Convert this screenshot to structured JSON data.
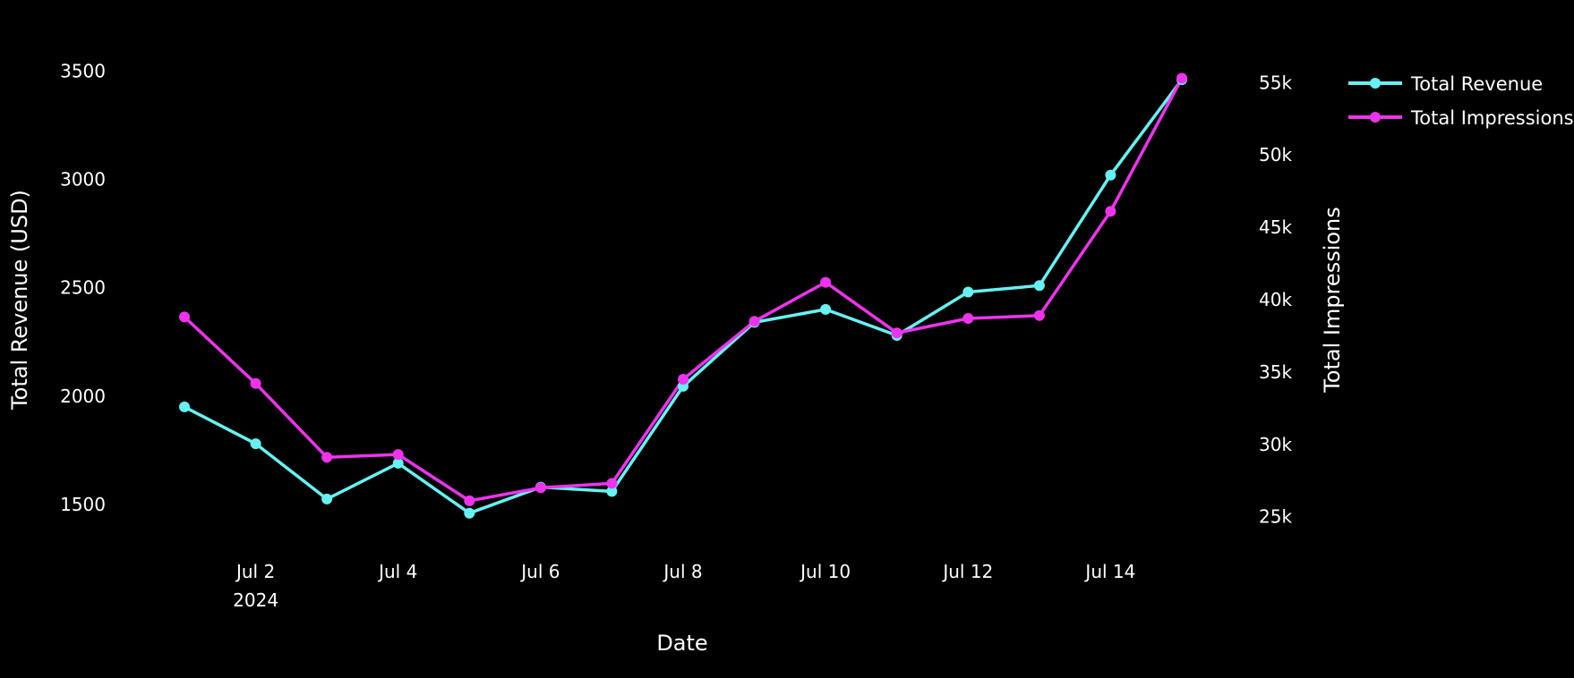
{
  "colors": {
    "background": "#000000",
    "text": "#ffffff",
    "revenue": "#66f2f2",
    "impressions": "#ee33ee"
  },
  "chart_data": {
    "type": "line",
    "x": [
      "2024-07-01",
      "2024-07-02",
      "2024-07-03",
      "2024-07-04",
      "2024-07-05",
      "2024-07-06",
      "2024-07-07",
      "2024-07-08",
      "2024-07-09",
      "2024-07-10",
      "2024-07-11",
      "2024-07-12",
      "2024-07-13",
      "2024-07-14",
      "2024-07-15"
    ],
    "x_tick_labels": [
      "Jul 2",
      "Jul 4",
      "Jul 6",
      "Jul 8",
      "Jul 10",
      "Jul 12",
      "Jul 14"
    ],
    "x_tick_year": "2024",
    "xlabel": "Date",
    "ylabel": "Total Revenue (USD)",
    "y2label": "Total Impressions",
    "ylim": [
      1310,
      3580
    ],
    "y2lim": [
      23000,
      57000
    ],
    "y_ticks": [
      1500,
      2000,
      2500,
      3000,
      3500
    ],
    "y2_ticks": [
      25000,
      30000,
      35000,
      40000,
      45000,
      50000,
      55000
    ],
    "y2_tick_labels": [
      "25k",
      "30k",
      "35k",
      "40k",
      "45k",
      "50k",
      "55k"
    ],
    "grid": false,
    "legend_position": "top-right",
    "series": [
      {
        "name": "Total Revenue",
        "axis": "y",
        "values": [
          1950,
          1780,
          1525,
          1690,
          1460,
          1580,
          1560,
          2045,
          2340,
          2400,
          2280,
          2480,
          2510,
          3020,
          3460
        ]
      },
      {
        "name": "Total Impressions",
        "axis": "y2",
        "values": [
          38800,
          34200,
          29100,
          29300,
          26100,
          27000,
          27300,
          34500,
          38500,
          41200,
          37700,
          38700,
          38900,
          46100,
          55300
        ]
      }
    ]
  }
}
